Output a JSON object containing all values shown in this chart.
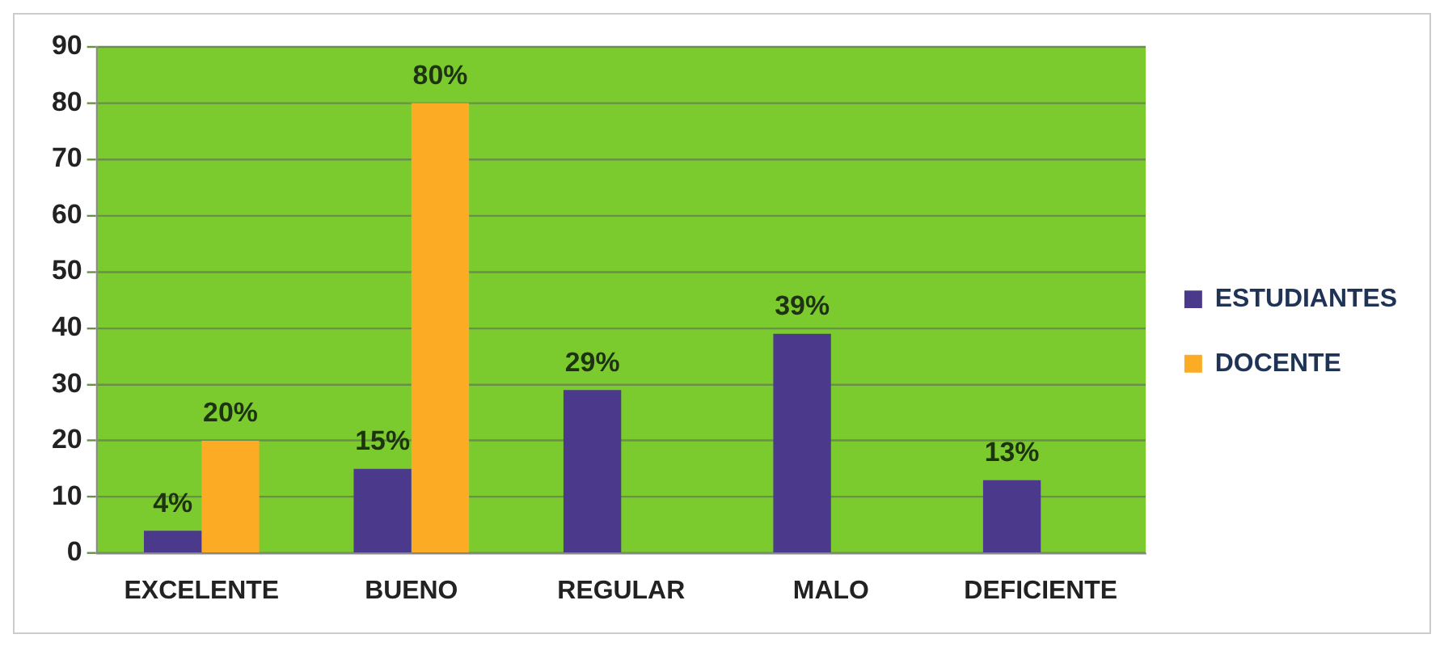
{
  "chart_data": {
    "type": "bar",
    "categories": [
      "EXCELENTE",
      "BUENO",
      "REGULAR",
      "MALO",
      "DEFICIENTE"
    ],
    "series": [
      {
        "name": "ESTUDIANTES",
        "color": "#4b3a8c",
        "values": [
          4,
          15,
          29,
          39,
          13
        ],
        "value_labels": [
          "4%",
          "15%",
          "29%",
          "39%",
          "13%"
        ]
      },
      {
        "name": "DOCENTE",
        "color": "#fbab24",
        "values": [
          20,
          80,
          null,
          null,
          null
        ],
        "value_labels": [
          "20%",
          "80%",
          null,
          null,
          null
        ]
      }
    ],
    "ylim": [
      0,
      90
    ],
    "yticks": [
      0,
      10,
      20,
      30,
      40,
      50,
      60,
      70,
      80,
      90
    ],
    "grid": "y",
    "legend": "right"
  }
}
